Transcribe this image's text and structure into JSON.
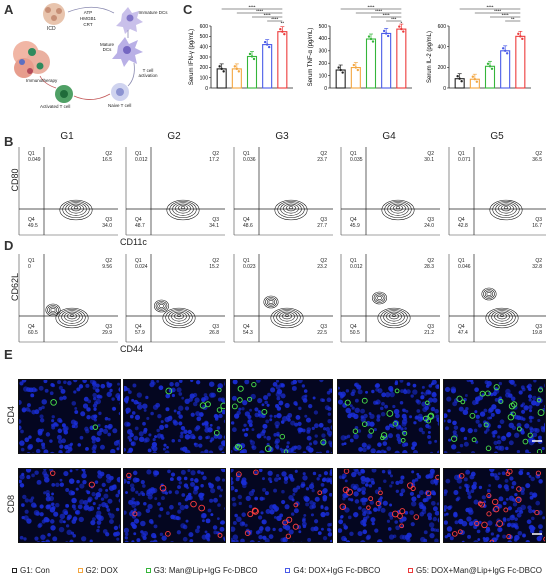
{
  "panels": {
    "a": "A",
    "b": "B",
    "c": "C",
    "d": "D",
    "e": "E"
  },
  "schematic": {
    "icd": "ICD",
    "dangers": [
      "ATP",
      "HMGB1",
      "CRT"
    ],
    "immature": "Immature DCs",
    "mature": "Mature DCs",
    "activation": "T cell activation",
    "naive": "Naive T cell",
    "activated": "Activated T cell",
    "immuno": "Immunotherapy"
  },
  "groups": [
    "G1",
    "G2",
    "G3",
    "G4",
    "G5"
  ],
  "flow_b": {
    "yaxis": "CD80",
    "xaxis": "CD11c",
    "quads": [
      {
        "q1": "0.049",
        "q2": "16.5",
        "q3": "34.0",
        "q4": "49.5"
      },
      {
        "q1": "0.012",
        "q2": "17.2",
        "q3": "34.1",
        "q4": "48.7"
      },
      {
        "q1": "0.036",
        "q2": "23.7",
        "q3": "27.7",
        "q4": "48.6"
      },
      {
        "q1": "0.035",
        "q2": "30.1",
        "q3": "24.0",
        "q4": "45.9"
      },
      {
        "q1": "0.071",
        "q2": "36.5",
        "q3": "16.7",
        "q4": "42.8"
      }
    ]
  },
  "flow_d": {
    "yaxis": "CD62L",
    "xaxis": "CD44",
    "quads": [
      {
        "q1": "0",
        "q2": "9.56",
        "q3": "29.9",
        "q4": "60.5"
      },
      {
        "q1": "0.024",
        "q2": "15.2",
        "q3": "26.8",
        "q4": "57.9"
      },
      {
        "q1": "0.023",
        "q2": "23.2",
        "q3": "22.5",
        "q4": "54.3"
      },
      {
        "q1": "0.012",
        "q2": "28.3",
        "q3": "21.2",
        "q4": "50.5"
      },
      {
        "q1": "0.046",
        "q2": "32.8",
        "q3": "19.8",
        "q4": "47.4"
      }
    ]
  },
  "quad_names": {
    "q1": "Q1",
    "q2": "Q2",
    "q3": "Q3",
    "q4": "Q4"
  },
  "chart_data": [
    {
      "type": "bar",
      "ylabel": "Serum IFN-γ (pg/mL)",
      "ylim": [
        0,
        600
      ],
      "yticks": [
        "0",
        "100",
        "200",
        "300",
        "400",
        "500",
        "600"
      ],
      "categories": [
        "G1",
        "G2",
        "G3",
        "G4",
        "G5"
      ],
      "values": [
        185,
        185,
        305,
        420,
        545
      ],
      "significance": [
        "****",
        "****",
        "****",
        "****",
        "**"
      ]
    },
    {
      "type": "bar",
      "ylabel": "Serum TNF-α (pg/mL)",
      "ylim": [
        0,
        500
      ],
      "yticks": [
        "0",
        "100",
        "200",
        "300",
        "400",
        "500"
      ],
      "categories": [
        "G1",
        "G2",
        "G3",
        "G4",
        "G5"
      ],
      "values": [
        145,
        165,
        395,
        440,
        475
      ],
      "significance": [
        "****",
        "****",
        "****",
        "***",
        "*"
      ]
    },
    {
      "type": "bar",
      "ylabel": "Serum IL-2 (pg/mL)",
      "ylim": [
        0,
        600
      ],
      "yticks": [
        "0",
        "200",
        "400",
        "600"
      ],
      "categories": [
        "G1",
        "G2",
        "G3",
        "G4",
        "G5"
      ],
      "values": [
        90,
        85,
        210,
        360,
        500
      ],
      "significance": [
        "****",
        "****",
        "****",
        "**"
      ]
    }
  ],
  "if_rows": [
    "CD4",
    "CD8"
  ],
  "legend": [
    {
      "label": "G1: Con",
      "color": "#222222"
    },
    {
      "label": "G2: DOX",
      "color": "#f3a640"
    },
    {
      "label": "G3: Man@Lip+IgG Fc-DBCO",
      "color": "#35b53a"
    },
    {
      "label": "G4: DOX+IgG Fc-DBCO",
      "color": "#4a5be8"
    },
    {
      "label": "G5: DOX+Man@Lip+IgG Fc-DBCO",
      "color": "#ec3b3b"
    }
  ]
}
